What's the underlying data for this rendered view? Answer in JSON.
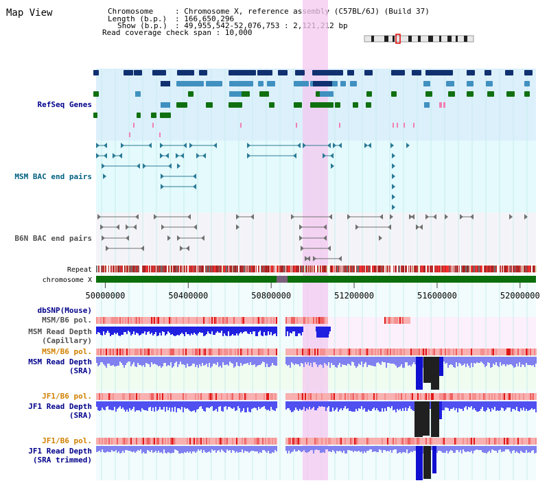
{
  "page": {
    "title": "Map View",
    "info": {
      "chromosome_label": "Chromosome",
      "chromosome_value": ": Chromosome X, reference assembly (C57BL/6J) (Build 37)",
      "length_label": "Length (b.p.)",
      "length_value": ": 166,650,296",
      "show_label": "Show (b.p.)",
      "show_value": ": 49,955,542-52,076,753 : 2,121,212 bp",
      "coverage_text": "Read coverage check span : 10,000"
    }
  },
  "tracks": {
    "refseq": "RefSeq Genes",
    "msm_bac": "MSM BAC end pairs",
    "b6n_bac": "B6N BAC end pairs",
    "repeat": "Repeat",
    "chromosome": "chromosome X",
    "dbsnp": "dbSNP(Mouse)",
    "msm_pol": "MSM/B6 pol.",
    "msm_depth_cap": [
      "MSM Read Depth",
      "(Capillary)"
    ],
    "msm_pol2": "MSM/B6 pol.",
    "msm_depth_sra": [
      "MSM Read Depth",
      "(SRA)"
    ],
    "jf1_pol": "JF1/B6 pol.",
    "jf1_depth_sra": [
      "JF1 Read Depth",
      "(SRA)"
    ],
    "jf1_pol2": "JF1/B6 pol.",
    "jf1_depth_trim": [
      "JF1 Read Depth",
      "(SRA trimmed)"
    ]
  },
  "axis": {
    "ticks": [
      "50000000",
      "50400000",
      "50800000",
      "51200000",
      "51600000",
      "52000000"
    ],
    "tick_values": [
      50000000,
      50400000,
      50800000,
      51200000,
      51600000,
      52000000
    ],
    "range": [
      49955542,
      52076753
    ]
  },
  "colors": {
    "blue_label": "#00008b",
    "teal_label": "#006080",
    "gray_label": "#505050",
    "orange_label": "#d08000",
    "highlight": "#f4c8f0",
    "refseq_bg": "#dcf0fc",
    "gene_dark": "#103070",
    "gene_mid": "#4090c0",
    "gene_green": "#107010",
    "gene_pink": "#f080b0"
  }
}
